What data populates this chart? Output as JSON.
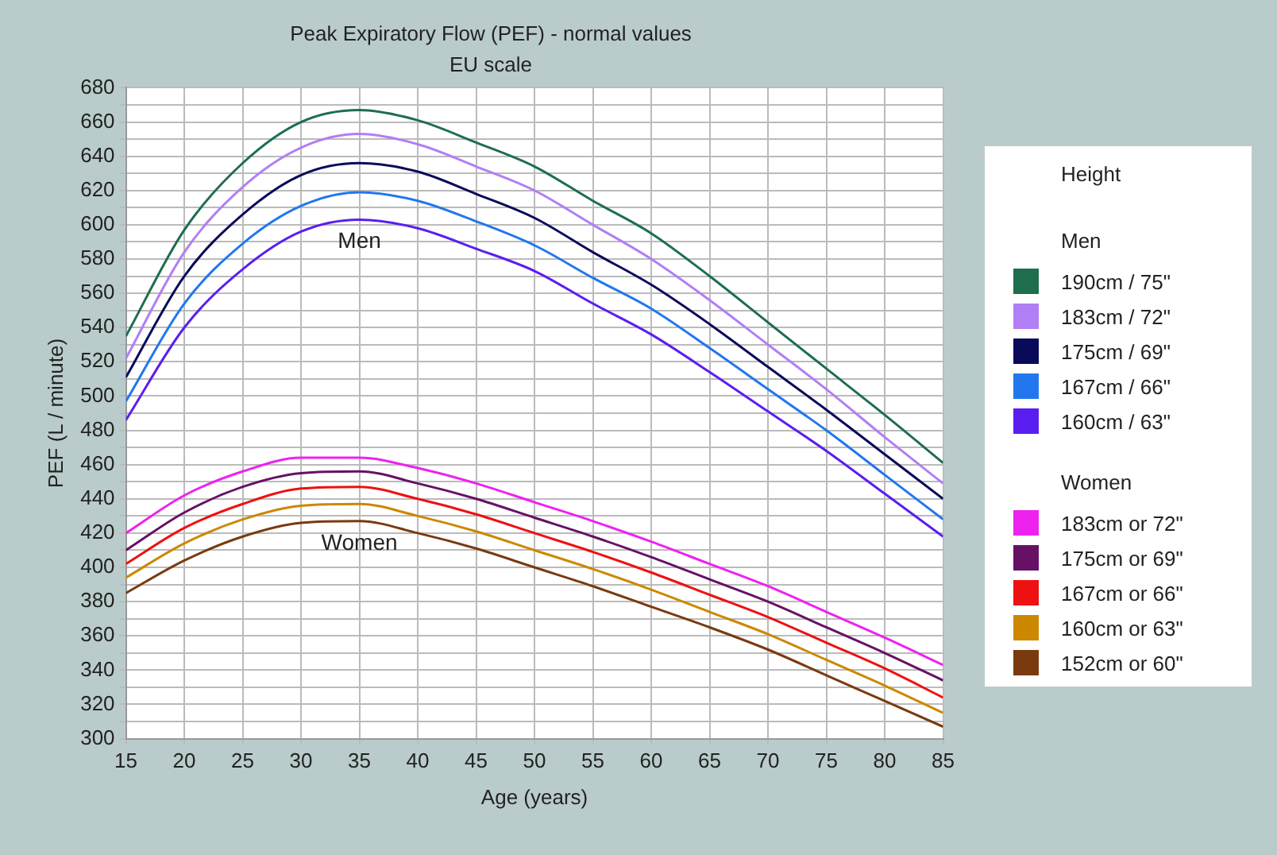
{
  "chart_data": {
    "type": "line",
    "title": "Peak Expiratory Flow (PEF) - normal values",
    "subtitle": "EU scale",
    "xlabel": "Age (years)",
    "ylabel": "PEF (L / minute)",
    "legend_title": "Height",
    "legend": "right",
    "grid": true,
    "marker": "none",
    "line_style": "solid",
    "x": [
      15,
      20,
      25,
      30,
      35,
      40,
      45,
      50,
      55,
      60,
      65,
      70,
      75,
      80,
      85
    ],
    "xlim": [
      15,
      85
    ],
    "xticks": [
      15,
      20,
      25,
      30,
      35,
      40,
      45,
      50,
      55,
      60,
      65,
      70,
      75,
      80,
      85
    ],
    "ylim": [
      300,
      680
    ],
    "yticks": [
      300,
      {
        "value": 310,
        "label": null
      },
      320,
      {
        "value": 330,
        "label": null
      },
      340,
      {
        "value": 350,
        "label": null
      },
      360,
      {
        "value": 370,
        "label": null
      },
      380,
      {
        "value": 390,
        "label": null
      },
      400,
      {
        "value": 410,
        "label": null
      },
      420,
      {
        "value": 430,
        "label": null
      },
      440,
      {
        "value": 450,
        "label": null
      },
      460,
      {
        "value": 470,
        "label": null
      },
      480,
      {
        "value": 490,
        "label": null
      },
      500,
      {
        "value": 510,
        "label": null
      },
      520,
      {
        "value": 530,
        "label": null
      },
      540,
      {
        "value": 550,
        "label": null
      },
      560,
      {
        "value": 570,
        "label": null
      },
      580,
      {
        "value": 590,
        "label": null
      },
      600,
      {
        "value": 610,
        "label": null
      },
      620,
      {
        "value": 630,
        "label": null
      },
      640,
      {
        "value": 650,
        "label": null
      },
      660,
      {
        "value": 670,
        "label": null
      },
      680
    ],
    "annotations": [
      "Men",
      "Women"
    ],
    "series": [
      {
        "name": "190cm / 75\"",
        "color": "#1e6e4e",
        "values": [
          535,
          597,
          636,
          660,
          667,
          661,
          648,
          634,
          614,
          595,
          570,
          543,
          516,
          489,
          461
        ]
      },
      {
        "name": "183cm / 72\"",
        "color": "#b27ef5",
        "values": [
          522,
          584,
          622,
          645,
          653,
          647,
          634,
          620,
          600,
          580,
          556,
          530,
          504,
          476,
          449
        ]
      },
      {
        "name": "175cm / 69\"",
        "color": "#0a0a5a",
        "values": [
          511,
          570,
          606,
          629,
          636,
          631,
          618,
          604,
          584,
          565,
          542,
          517,
          492,
          466,
          440
        ]
      },
      {
        "name": "167cm / 66\"",
        "color": "#2277ee",
        "values": [
          497,
          554,
          589,
          611,
          619,
          614,
          602,
          588,
          569,
          551,
          528,
          504,
          480,
          454,
          428
        ]
      },
      {
        "name": "160cm / 63\"",
        "color": "#5a1ef0",
        "values": [
          486,
          540,
          574,
          596,
          603,
          598,
          586,
          573,
          554,
          536,
          514,
          491,
          468,
          443,
          418
        ]
      },
      {
        "name": "183cm or 72\"",
        "color": "#ee22ee",
        "values": [
          420,
          442,
          456,
          464,
          464,
          458,
          449,
          438,
          427,
          415,
          402,
          389,
          374,
          359,
          343
        ]
      },
      {
        "name": "175cm or 69\"",
        "color": "#661166",
        "values": [
          410,
          432,
          447,
          455,
          456,
          449,
          440,
          429,
          418,
          406,
          393,
          380,
          365,
          350,
          334
        ]
      },
      {
        "name": "167cm or 66\"",
        "color": "#ee1111",
        "values": [
          402,
          423,
          437,
          446,
          447,
          440,
          431,
          420,
          409,
          397,
          384,
          371,
          356,
          341,
          324
        ]
      },
      {
        "name": "160cm or 63\"",
        "color": "#cc8800",
        "values": [
          394,
          414,
          428,
          436,
          437,
          430,
          421,
          410,
          399,
          387,
          374,
          361,
          346,
          331,
          315
        ]
      },
      {
        "name": "152cm or 60\"",
        "color": "#7a3a10",
        "values": [
          385,
          404,
          418,
          426,
          427,
          420,
          411,
          400,
          389,
          377,
          365,
          352,
          337,
          322,
          307
        ]
      }
    ]
  }
}
